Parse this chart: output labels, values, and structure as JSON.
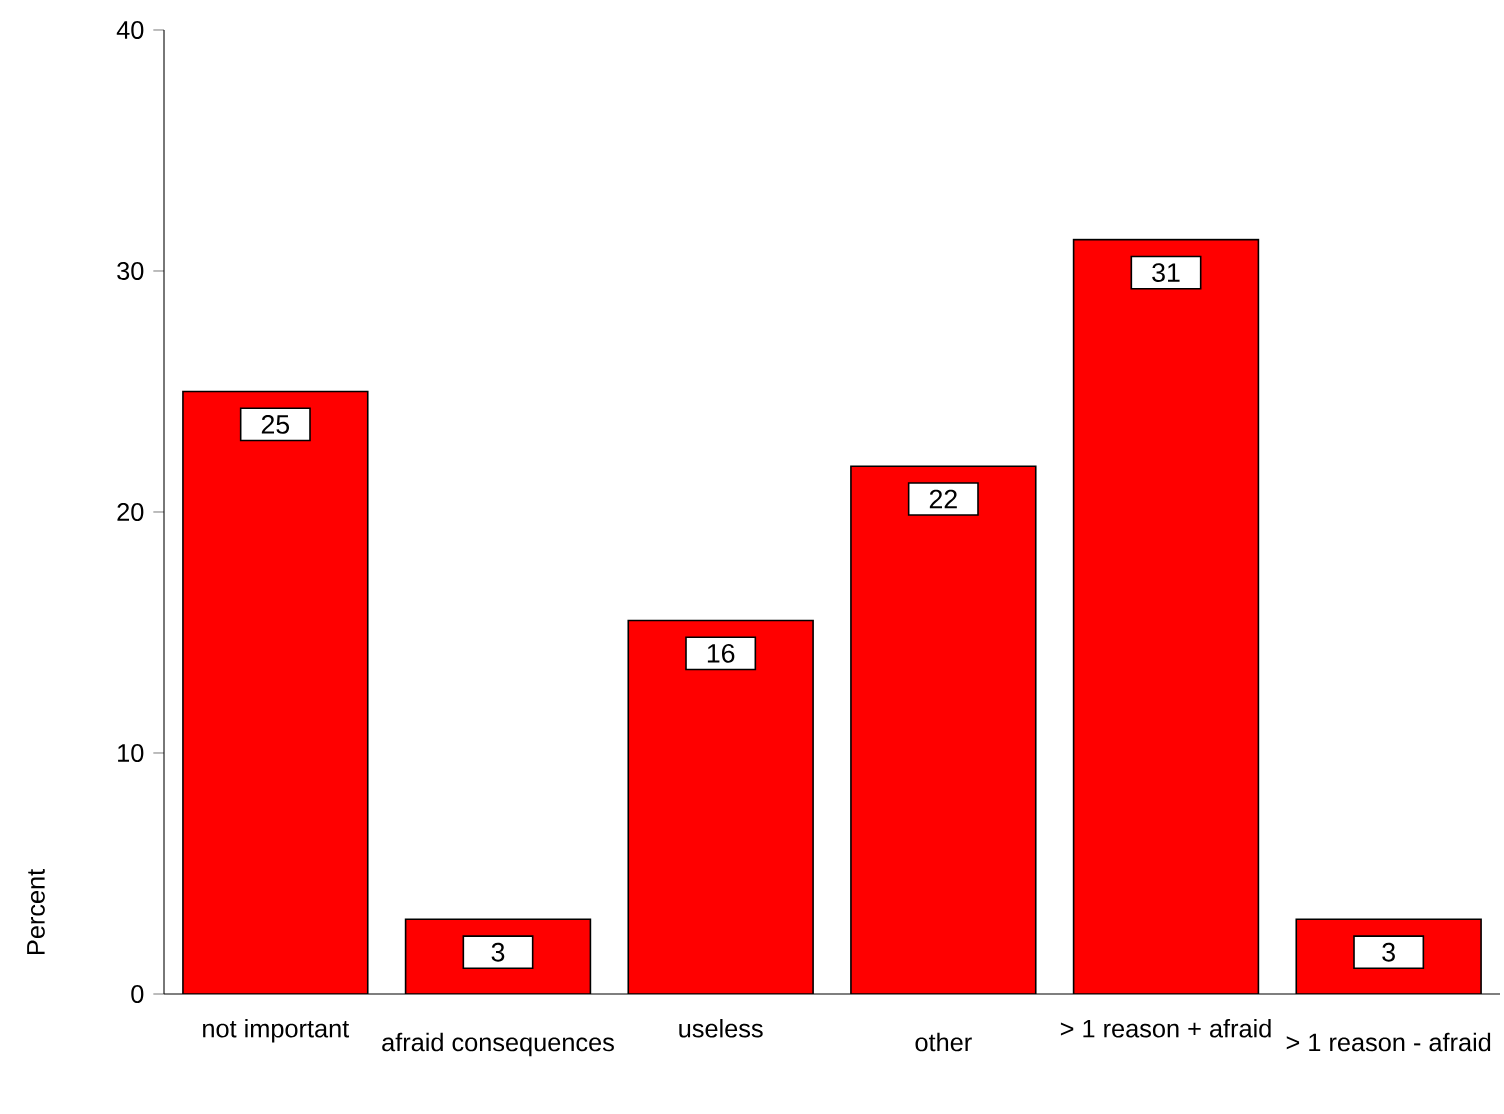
{
  "chart_data": {
    "type": "bar",
    "ylabel": "Percent",
    "categories": [
      "not important",
      "afraid  consequences",
      "useless",
      "other",
      "> 1 reason + afraid",
      "> 1 reason - afraid"
    ],
    "values": [
      25,
      3.1,
      15.5,
      21.9,
      31.3,
      3.1
    ],
    "value_labels": [
      "25",
      "3",
      "16",
      "22",
      "31",
      "3"
    ],
    "color": "#ff0000",
    "ylim": [
      0,
      40
    ],
    "yticks": [
      0,
      10,
      20,
      30,
      40
    ]
  }
}
